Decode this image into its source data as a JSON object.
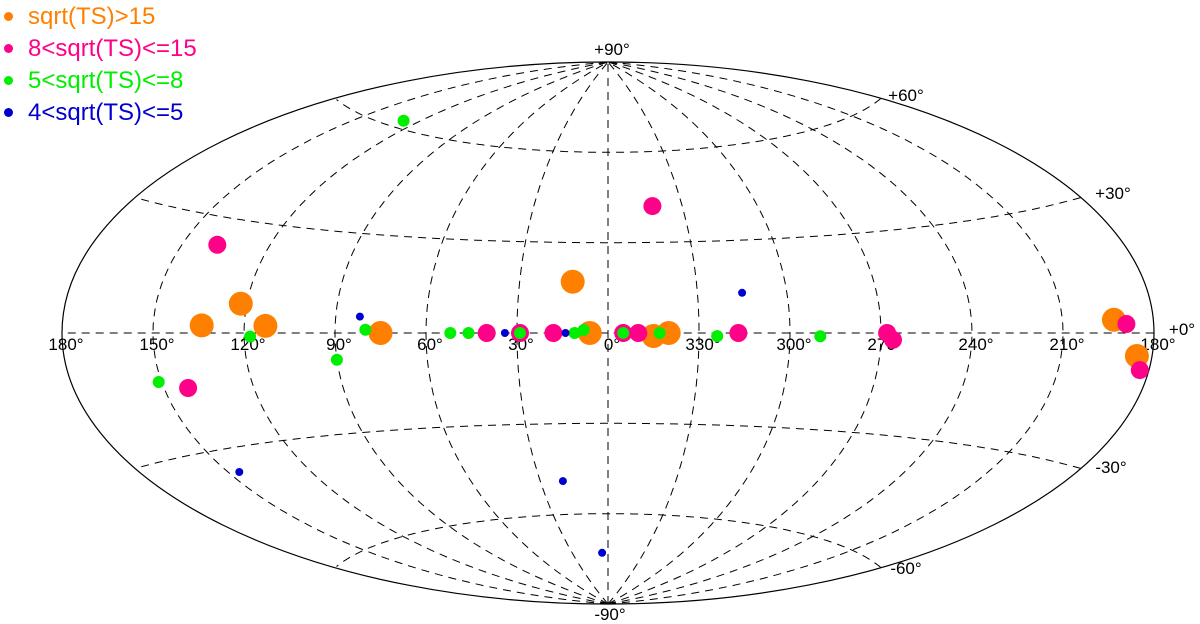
{
  "chart_data": {
    "type": "scatter",
    "projection": "aitoff (all-sky, galactic coordinates)",
    "x_axis": "galactic longitude, 180 on the left increasing to 360/0 in the center and 180 on the right",
    "title": "",
    "xlabel": "",
    "ylabel": "",
    "grid": true,
    "grid_style": "dashed",
    "legend_position": "top-left",
    "lon_tick_labels": [
      "180°",
      "150°",
      "120°",
      "90°",
      "60°",
      "30°",
      "0°",
      "330°",
      "300°",
      "270°",
      "240°",
      "210°",
      "180°"
    ],
    "lat_tick_labels": [
      "+90°",
      "+60°",
      "+30°",
      "+0°",
      "-30°",
      "-60°",
      "-90°"
    ],
    "series": [
      {
        "name": "sqrt(TS)>15",
        "color": "#ff8000",
        "size": "large",
        "points": [
          {
            "l": 134,
            "b": 2
          },
          {
            "l": 122,
            "b": 8
          },
          {
            "l": 113,
            "b": 2
          },
          {
            "l": 75,
            "b": 0
          },
          {
            "l": 12,
            "b": 17
          },
          {
            "l": 6,
            "b": 0
          },
          {
            "l": 345,
            "b": -1
          },
          {
            "l": 340,
            "b": 0
          },
          {
            "l": 193,
            "b": 3
          },
          {
            "l": 185,
            "b": -5
          }
        ]
      },
      {
        "name": "8<sqrt(TS)<=15",
        "color": "#ff0088",
        "size": "medium",
        "points": [
          {
            "l": 342,
            "b": 42
          },
          {
            "l": 138,
            "b": 23
          },
          {
            "l": 142,
            "b": -14
          },
          {
            "l": 40,
            "b": 0
          },
          {
            "l": 29,
            "b": 0
          },
          {
            "l": 18,
            "b": 0
          },
          {
            "l": 355,
            "b": 0
          },
          {
            "l": 350,
            "b": 0
          },
          {
            "l": 317,
            "b": 0
          },
          {
            "l": 268,
            "b": 0
          },
          {
            "l": 266,
            "b": -2
          },
          {
            "l": 189,
            "b": 2
          },
          {
            "l": 183,
            "b": -8
          }
        ]
      },
      {
        "name": "5<sqrt(TS)<=8",
        "color": "#00ee00",
        "size": "small",
        "points": [
          {
            "l": 128,
            "b": 62
          },
          {
            "l": 151,
            "b": -12
          },
          {
            "l": 118,
            "b": -1
          },
          {
            "l": 90,
            "b": -8
          },
          {
            "l": 80,
            "b": 1
          },
          {
            "l": 52,
            "b": 0
          },
          {
            "l": 46,
            "b": 0
          },
          {
            "l": 29,
            "b": 0
          },
          {
            "l": 11,
            "b": 0
          },
          {
            "l": 8,
            "b": 1
          },
          {
            "l": 355,
            "b": 0
          },
          {
            "l": 343,
            "b": 0
          },
          {
            "l": 324,
            "b": -1
          },
          {
            "l": 290,
            "b": -1
          }
        ]
      },
      {
        "name": "4<sqrt(TS)<=5",
        "color": "#0000cc",
        "size": "tiny",
        "points": [
          {
            "l": 82,
            "b": 5
          },
          {
            "l": 34,
            "b": 0
          },
          {
            "l": 14,
            "b": 0
          },
          {
            "l": 315,
            "b": 13
          },
          {
            "l": 146,
            "b": -36
          },
          {
            "l": 20,
            "b": -49
          },
          {
            "l": 5,
            "b": -73
          }
        ]
      }
    ]
  }
}
